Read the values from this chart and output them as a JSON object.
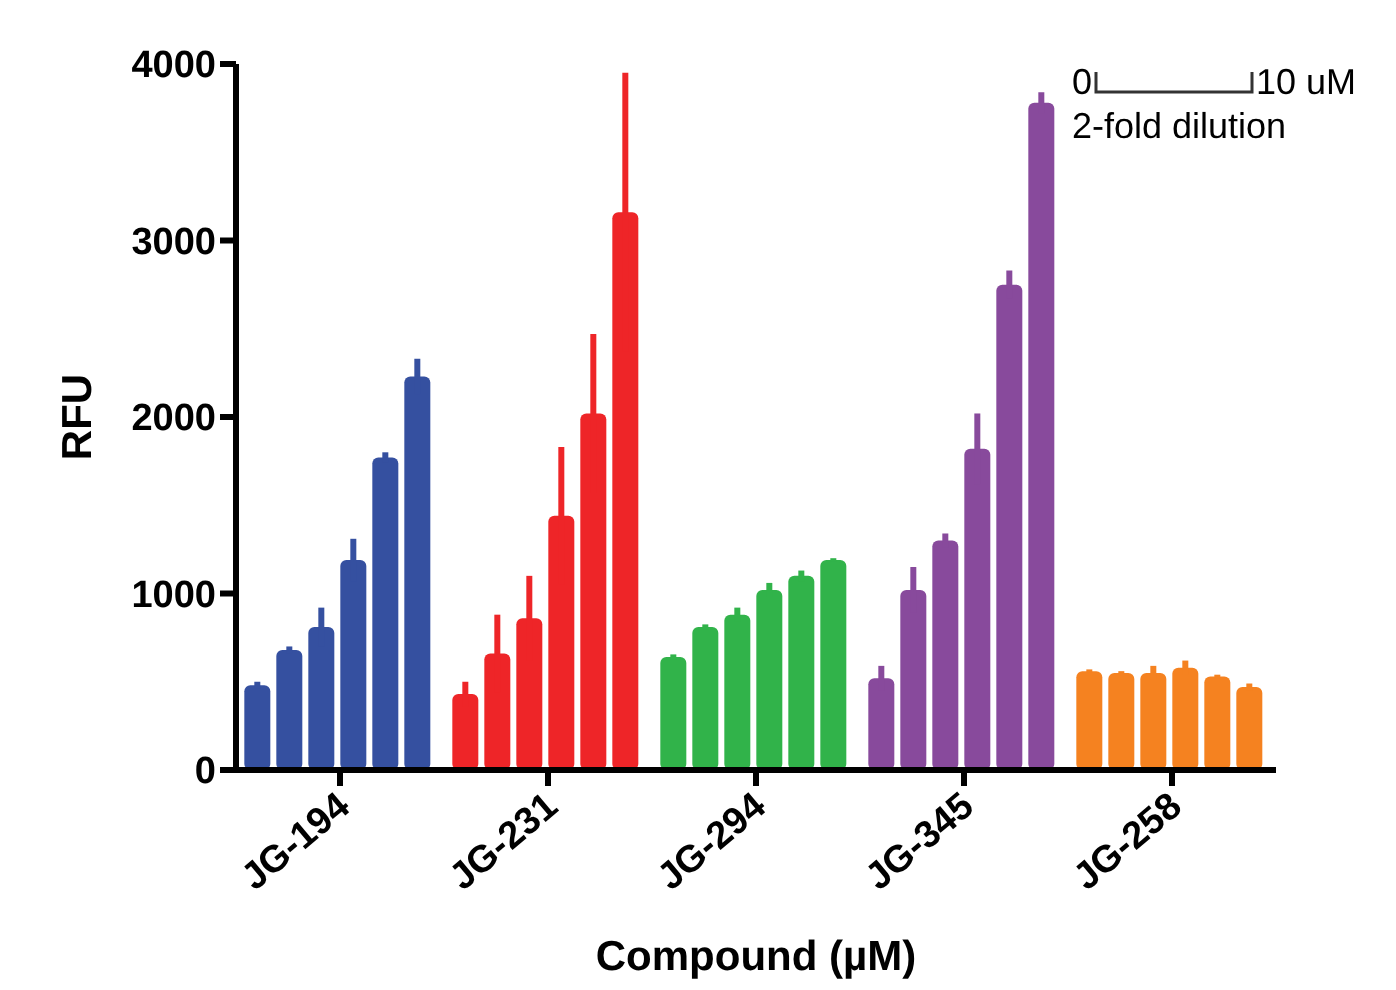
{
  "chart_data": {
    "type": "bar",
    "xlabel": "Compound (µM)",
    "ylabel": "RFU",
    "categories": [
      "JG-194",
      "JG-231",
      "JG-294",
      "JG-345",
      "JG-258"
    ],
    "series": [
      {
        "colors": [
          "#3550a0",
          "#ee2528",
          "#31b34a",
          "#884a9c",
          "#f58220"
        ],
        "values": [
          480,
          430,
          640,
          520,
          560
        ],
        "errors": [
          20,
          70,
          15,
          70,
          10
        ]
      },
      {
        "colors": [
          "#3550a0",
          "#ee2528",
          "#31b34a",
          "#884a9c",
          "#f58220"
        ],
        "values": [
          680,
          660,
          810,
          1020,
          550
        ],
        "errors": [
          20,
          220,
          15,
          130,
          10
        ]
      },
      {
        "colors": [
          "#3550a0",
          "#ee2528",
          "#31b34a",
          "#884a9c",
          "#f58220"
        ],
        "values": [
          810,
          860,
          880,
          1300,
          550
        ],
        "errors": [
          110,
          240,
          40,
          40,
          40
        ]
      },
      {
        "colors": [
          "#3550a0",
          "#ee2528",
          "#31b34a",
          "#884a9c",
          "#f58220"
        ],
        "values": [
          1190,
          1440,
          1020,
          1820,
          580
        ],
        "errors": [
          120,
          390,
          40,
          200,
          40
        ]
      },
      {
        "colors": [
          "#3550a0",
          "#ee2528",
          "#31b34a",
          "#884a9c",
          "#f58220"
        ],
        "values": [
          1770,
          2020,
          1100,
          2750,
          530
        ],
        "errors": [
          30,
          450,
          30,
          80,
          10
        ]
      },
      {
        "colors": [
          "#3550a0",
          "#ee2528",
          "#31b34a",
          "#884a9c",
          "#f58220"
        ],
        "values": [
          2230,
          3160,
          1190,
          3780,
          470
        ],
        "errors": [
          100,
          790,
          10,
          60,
          20
        ]
      }
    ],
    "ylim": [
      0,
      4000
    ],
    "yticks": [
      0,
      1000,
      2000,
      3000,
      4000
    ],
    "annotations": [
      "0",
      "10 uM",
      "2-fold dilution"
    ]
  }
}
